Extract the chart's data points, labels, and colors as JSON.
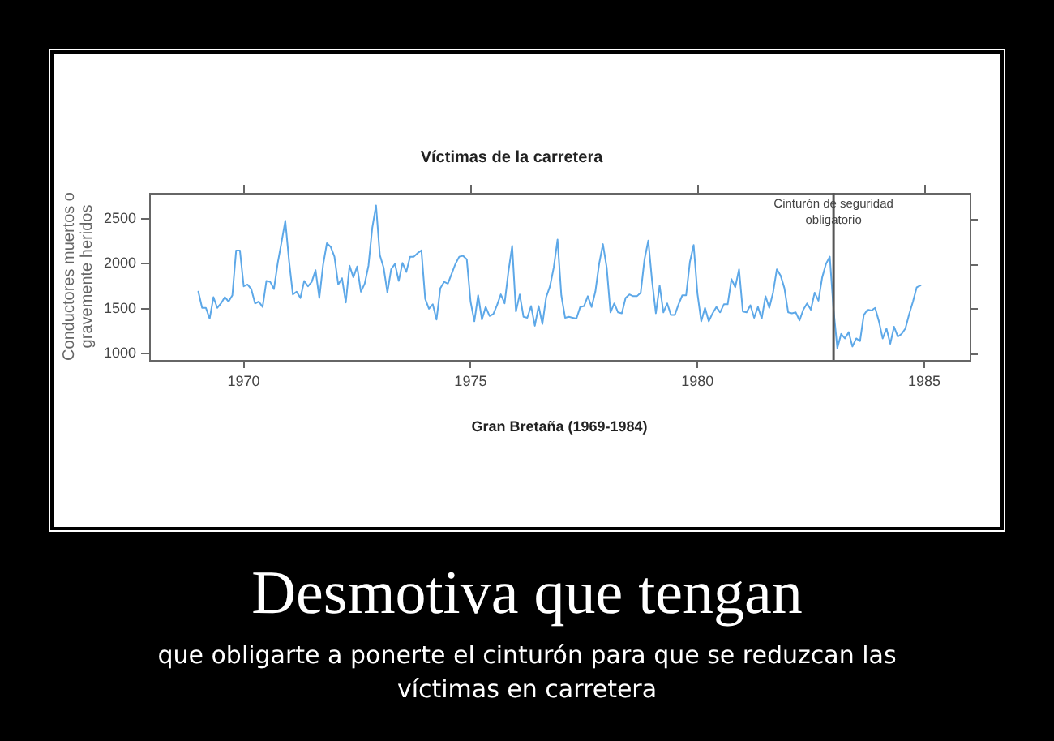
{
  "chart_data": {
    "type": "line",
    "title": "Víctimas de la carretera",
    "xlabel": "Gran Bretaña (1969-1984)",
    "ylabel": "Conductores muertos o\ngravemente heridos",
    "color": "#5da8e8",
    "x": [
      "1969-01",
      "1969-02",
      "1969-03",
      "1969-04",
      "1969-05",
      "1969-06",
      "1969-07",
      "1969-08",
      "1969-09",
      "1969-10",
      "1969-11",
      "1969-12",
      "1970-01",
      "1970-02",
      "1970-03",
      "1970-04",
      "1970-05",
      "1970-06",
      "1970-07",
      "1970-08",
      "1970-09",
      "1970-10",
      "1970-11",
      "1970-12",
      "1971-01",
      "1971-02",
      "1971-03",
      "1971-04",
      "1971-05",
      "1971-06",
      "1971-07",
      "1971-08",
      "1971-09",
      "1971-10",
      "1971-11",
      "1971-12",
      "1972-01",
      "1972-02",
      "1972-03",
      "1972-04",
      "1972-05",
      "1972-06",
      "1972-07",
      "1972-08",
      "1972-09",
      "1972-10",
      "1972-11",
      "1972-12",
      "1973-01",
      "1973-02",
      "1973-03",
      "1973-04",
      "1973-05",
      "1973-06",
      "1973-07",
      "1973-08",
      "1973-09",
      "1973-10",
      "1973-11",
      "1973-12",
      "1974-01",
      "1974-02",
      "1974-03",
      "1974-04",
      "1974-05",
      "1974-06",
      "1974-07",
      "1974-08",
      "1974-09",
      "1974-10",
      "1974-11",
      "1974-12",
      "1975-01",
      "1975-02",
      "1975-03",
      "1975-04",
      "1975-05",
      "1975-06",
      "1975-07",
      "1975-08",
      "1975-09",
      "1975-10",
      "1975-11",
      "1975-12",
      "1976-01",
      "1976-02",
      "1976-03",
      "1976-04",
      "1976-05",
      "1976-06",
      "1976-07",
      "1976-08",
      "1976-09",
      "1976-10",
      "1976-11",
      "1976-12",
      "1977-01",
      "1977-02",
      "1977-03",
      "1977-04",
      "1977-05",
      "1977-06",
      "1977-07",
      "1977-08",
      "1977-09",
      "1977-10",
      "1977-11",
      "1977-12",
      "1978-01",
      "1978-02",
      "1978-03",
      "1978-04",
      "1978-05",
      "1978-06",
      "1978-07",
      "1978-08",
      "1978-09",
      "1978-10",
      "1978-11",
      "1978-12",
      "1979-01",
      "1979-02",
      "1979-03",
      "1979-04",
      "1979-05",
      "1979-06",
      "1979-07",
      "1979-08",
      "1979-09",
      "1979-10",
      "1979-11",
      "1979-12",
      "1980-01",
      "1980-02",
      "1980-03",
      "1980-04",
      "1980-05",
      "1980-06",
      "1980-07",
      "1980-08",
      "1980-09",
      "1980-10",
      "1980-11",
      "1980-12",
      "1981-01",
      "1981-02",
      "1981-03",
      "1981-04",
      "1981-05",
      "1981-06",
      "1981-07",
      "1981-08",
      "1981-09",
      "1981-10",
      "1981-11",
      "1981-12",
      "1982-01",
      "1982-02",
      "1982-03",
      "1982-04",
      "1982-05",
      "1982-06",
      "1982-07",
      "1982-08",
      "1982-09",
      "1982-10",
      "1982-11",
      "1982-12",
      "1983-01",
      "1983-02",
      "1983-03",
      "1983-04",
      "1983-05",
      "1983-06",
      "1983-07",
      "1983-08",
      "1983-09",
      "1983-10",
      "1983-11",
      "1983-12",
      "1984-01",
      "1984-02",
      "1984-03",
      "1984-04",
      "1984-05",
      "1984-06",
      "1984-07",
      "1984-08",
      "1984-09",
      "1984-10",
      "1984-11",
      "1984-12"
    ],
    "values": [
      1690,
      1510,
      1510,
      1390,
      1630,
      1510,
      1560,
      1630,
      1580,
      1650,
      2150,
      2150,
      1750,
      1770,
      1720,
      1560,
      1580,
      1520,
      1810,
      1800,
      1720,
      2010,
      2240,
      2480,
      2030,
      1660,
      1690,
      1620,
      1810,
      1750,
      1800,
      1930,
      1620,
      1990,
      2230,
      2190,
      2080,
      1770,
      1840,
      1570,
      1980,
      1850,
      1970,
      1690,
      1780,
      1980,
      2400,
      2650,
      2100,
      1960,
      1680,
      1940,
      2000,
      1810,
      2010,
      1910,
      2080,
      2080,
      2120,
      2150,
      1610,
      1500,
      1550,
      1380,
      1730,
      1800,
      1780,
      1890,
      2000,
      2080,
      2090,
      2050,
      1580,
      1360,
      1650,
      1380,
      1520,
      1420,
      1440,
      1540,
      1660,
      1560,
      1910,
      2200,
      1470,
      1660,
      1410,
      1400,
      1530,
      1310,
      1530,
      1330,
      1630,
      1750,
      1960,
      2270,
      1650,
      1400,
      1410,
      1400,
      1390,
      1520,
      1530,
      1640,
      1520,
      1690,
      2000,
      2220,
      1960,
      1460,
      1560,
      1460,
      1450,
      1620,
      1660,
      1640,
      1640,
      1680,
      2050,
      2260,
      1810,
      1450,
      1760,
      1460,
      1560,
      1430,
      1430,
      1550,
      1650,
      1650,
      2020,
      2210,
      1670,
      1360,
      1510,
      1360,
      1450,
      1520,
      1460,
      1550,
      1550,
      1830,
      1740,
      1940,
      1470,
      1460,
      1540,
      1400,
      1520,
      1390,
      1640,
      1510,
      1680,
      1940,
      1870,
      1730,
      1460,
      1450,
      1460,
      1370,
      1490,
      1560,
      1490,
      1680,
      1590,
      1850,
      2000,
      2080,
      1490,
      1060,
      1220,
      1170,
      1240,
      1080,
      1170,
      1140,
      1430,
      1490,
      1480,
      1510,
      1360,
      1170,
      1280,
      1110,
      1300,
      1190,
      1220,
      1280,
      1440,
      1580,
      1740,
      1760
    ],
    "xlim": [
      "1967-12",
      "1986-01"
    ],
    "xticks": [
      "1970",
      "1975",
      "1980",
      "1985"
    ],
    "ylim": [
      930,
      2790
    ],
    "yticks": [
      1000,
      1500,
      2000,
      2500
    ],
    "ref_lines": [
      {
        "axis": "x",
        "value": "1983",
        "label": "Cinturón de seguridad\nobligatorio",
        "color": "#555555"
      }
    ],
    "annotations": [
      "Desmotiva que tengan",
      "que obligarte a ponerte el cinturón para que se reduzcan las víctimas en carretera"
    ]
  }
}
